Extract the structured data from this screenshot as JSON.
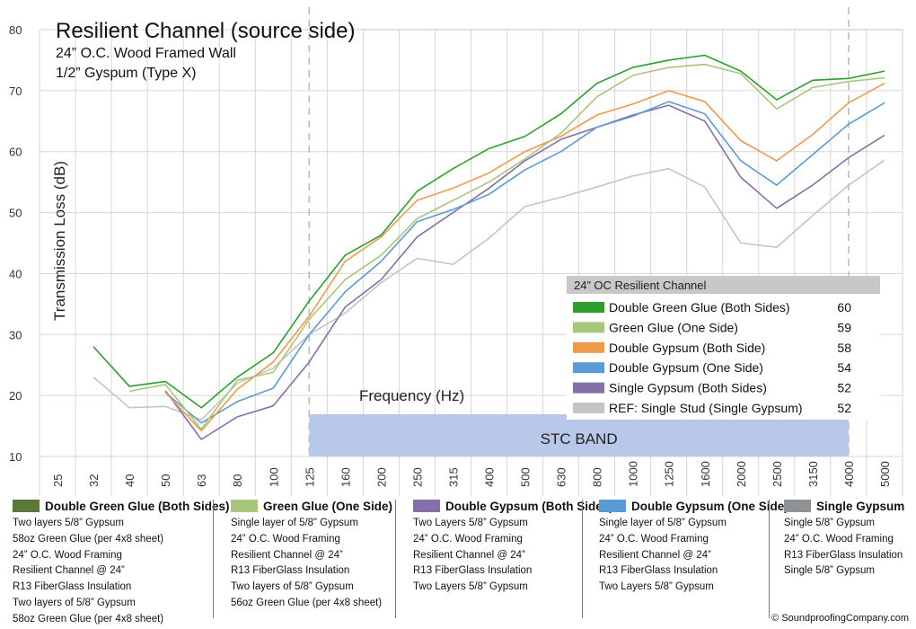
{
  "chart_data": {
    "type": "line",
    "title": "Resilient Channel (source side)",
    "subtitle_1": "24” O.C. Wood Framed Wall",
    "subtitle_2": "1/2” Gyspum (Type X)",
    "xlabel": "Frequency (Hz)",
    "ylabel": "Transmission Loss (dB)",
    "ylim": [
      10,
      80
    ],
    "yticks": [
      "10",
      "20",
      "30",
      "40",
      "50",
      "60",
      "70",
      "80"
    ],
    "categories": [
      "25",
      "32",
      "40",
      "50",
      "63",
      "80",
      "100",
      "125",
      "160",
      "200",
      "250",
      "315",
      "400",
      "500",
      "630",
      "800",
      "1000",
      "1250",
      "1600",
      "2000",
      "2500",
      "3150",
      "4000",
      "5000"
    ],
    "stc_band_label": "STC BAND",
    "stc_band_range": [
      "125",
      "4000"
    ],
    "grid": true,
    "series": [
      {
        "name": "Double Green Glue  (Both Sides)",
        "stc": "60",
        "color": "#2e9e2e",
        "values": [
          null,
          28,
          21.5,
          22.3,
          18,
          23,
          27,
          35.5,
          43,
          46.3,
          53.5,
          57.2,
          60.5,
          62.5,
          66.2,
          71.2,
          73.8,
          75,
          75.8,
          73.2,
          68.5,
          71.7,
          72,
          73.2
        ]
      },
      {
        "name": "Green Glue (One Side)",
        "stc": "59",
        "color": "#a8c77c",
        "values": [
          null,
          null,
          20.7,
          21.8,
          14.5,
          22.5,
          23.8,
          32.5,
          39,
          43,
          49,
          52,
          55,
          58.8,
          63,
          69,
          72.5,
          73.8,
          74.3,
          72.8,
          67,
          70.5,
          71.5,
          72.1
        ]
      },
      {
        "name": "Double Gypsum (Both Side)",
        "stc": "58",
        "color": "#ef9a4a",
        "values": [
          null,
          null,
          null,
          20.5,
          14.2,
          21,
          25.5,
          33,
          42,
          46,
          52,
          54,
          56.5,
          60,
          62.5,
          66,
          67.8,
          70,
          68.2,
          61.8,
          58.5,
          62.8,
          68,
          71.2
        ]
      },
      {
        "name": "Double Gypsum (One Side)",
        "stc": "54",
        "color": "#5b9bd5",
        "values": [
          null,
          null,
          null,
          20.5,
          15.5,
          19,
          21.2,
          30,
          37,
          42,
          48.5,
          50.5,
          53,
          57,
          60,
          64,
          65.8,
          68.2,
          66.2,
          58.5,
          54.5,
          59.5,
          64.5,
          68
        ]
      },
      {
        "name": "Single Gypsum (Both Sides)",
        "stc": "52",
        "color": "#8470a8",
        "values": [
          null,
          null,
          null,
          20.8,
          12.8,
          16.5,
          18.3,
          25.5,
          34.5,
          39,
          46,
          50,
          54,
          58.5,
          62,
          64,
          66,
          67.6,
          65,
          55.8,
          50.7,
          54.5,
          59,
          62.7
        ]
      },
      {
        "name": "REF: Single Stud (Single Gypsum)",
        "stc": "52",
        "color": "#c4c4c4",
        "values": [
          null,
          23,
          18,
          18.2,
          16,
          22,
          24.5,
          30,
          33.5,
          38.5,
          42.5,
          41.5,
          45.8,
          51,
          52.5,
          54.2,
          56,
          57.2,
          54.2,
          45,
          44.3,
          49.5,
          54.5,
          58.6
        ]
      }
    ],
    "legend_title": "24” OC Resilient Channel",
    "legend_position": "center-right"
  },
  "descriptions": [
    {
      "title": "Double Green Glue (Both Sides)",
      "color": "#5b7a3a",
      "lines": [
        "Two layers 5/8” Gypsum",
        "58oz Green Glue (per 4x8 sheet)",
        "24” O.C. Wood Framing",
        "Resilient Channel @ 24”",
        "R13 FiberGlass Insulation",
        "Two layers of 5/8” Gypsum",
        "58oz Green Glue (per 4x8 sheet)"
      ]
    },
    {
      "title": "Green Glue (One Side)",
      "color": "#a8c77c",
      "lines": [
        "Single layer of 5/8” Gypsum",
        "24” O.C. Wood Framing",
        "Resilient Channel @ 24”",
        "R13 FiberGlass Insulation",
        "Two layers of 5/8” Gypsum",
        "56oz Green Glue (per 4x8 sheet)"
      ]
    },
    {
      "title": "Double Gypsum (Both Sides)",
      "color": "#8470a8",
      "lines": [
        "Two Layers 5/8” Gypsum",
        "24” O.C. Wood Framing",
        "Resilient Channel @ 24”",
        "R13 FiberGlass Insulation",
        "Two Layers 5/8” Gypsum"
      ]
    },
    {
      "title": "Double Gypsum (One Side)",
      "color": "#5b9bd5",
      "lines": [
        "Single layer of  5/8” Gypsum",
        "24” O.C. Wood Framing",
        "Resilient Channel @ 24”",
        "R13 FiberGlass Insulation",
        "Two Layers 5/8” Gypsum"
      ]
    },
    {
      "title": "Single Gypsum",
      "color": "#8f9294",
      "lines": [
        "Single 5/8” Gypsum",
        "24” O.C. Wood Framing",
        "R13 FiberGlass Insulation",
        "Single 5/8” Gypsum"
      ]
    }
  ],
  "copyright": "© SoundproofingCompany.com"
}
